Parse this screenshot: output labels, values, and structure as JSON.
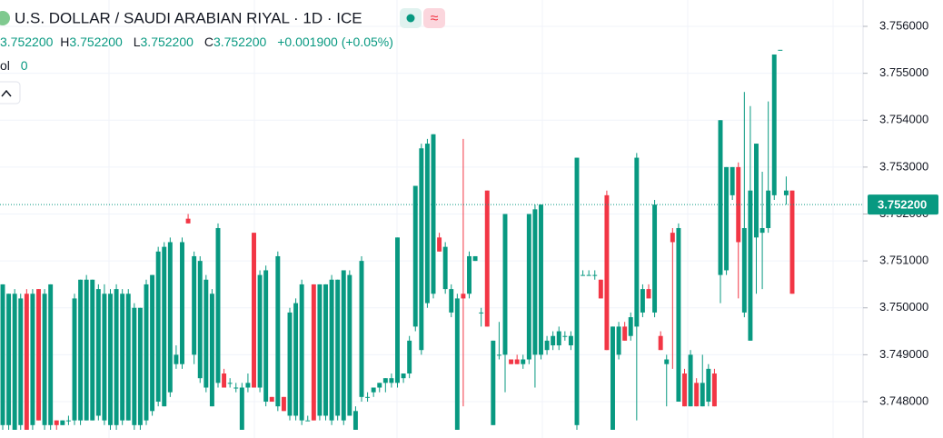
{
  "chart_data": {
    "type": "candlestick",
    "title": "U.S. DOLLAR / SAUDI ARABIAN RIYAL · 1D · ICE",
    "legend": {
      "open": "3.752200",
      "high_label": "H",
      "high": "3.752200",
      "low_label": "L",
      "low": "3.752200",
      "close_label": "C",
      "close": "3.752200",
      "change": "+0.001900 (+0.05%)",
      "volume_label": "ol",
      "volume": "0"
    },
    "up_color": "#089981",
    "down_color": "#f23645",
    "ylim": [
      3.747225,
      3.756562
    ],
    "yticks": [
      {
        "value": 3.756,
        "label": "3.756000"
      },
      {
        "value": 3.755,
        "label": "3.755000"
      },
      {
        "value": 3.754,
        "label": "3.754000"
      },
      {
        "value": 3.753,
        "label": "3.753000"
      },
      {
        "value": 3.752,
        "label": "3.752000"
      },
      {
        "value": 3.751,
        "label": "3.751000"
      },
      {
        "value": 3.75,
        "label": "3.750000"
      },
      {
        "value": 3.749,
        "label": "3.749000"
      },
      {
        "value": 3.748,
        "label": "3.748000"
      }
    ],
    "grid": true,
    "last_price": {
      "value": 3.7522,
      "label": "3.752200"
    },
    "ohlc": [
      [
        3.7475,
        3.7505,
        3.7474,
        3.7505
      ],
      [
        3.7475,
        3.7503,
        3.7474,
        3.7503
      ],
      [
        3.7474,
        3.7504,
        3.7474,
        3.7503
      ],
      [
        3.7475,
        3.7503,
        3.7474,
        3.7502
      ],
      [
        3.7503,
        3.7504,
        3.7474,
        3.7474
      ],
      [
        3.7475,
        3.7504,
        3.7474,
        3.7503
      ],
      [
        3.7504,
        3.7504,
        3.7476,
        3.7476
      ],
      [
        3.7475,
        3.7504,
        3.7474,
        3.7503
      ],
      [
        3.7475,
        3.7505,
        3.7474,
        3.7505
      ],
      [
        3.7476,
        3.7476,
        3.7474,
        3.7475
      ],
      [
        3.7475,
        3.7476,
        3.7475,
        3.7476
      ],
      [
        3.7476,
        3.7477,
        3.7475,
        3.7476
      ],
      [
        3.7476,
        3.7503,
        3.7475,
        3.7502
      ],
      [
        3.7476,
        3.7506,
        3.7475,
        3.7506
      ],
      [
        3.7476,
        3.7507,
        3.7476,
        3.7506
      ],
      [
        3.7476,
        3.7506,
        3.7476,
        3.7506
      ],
      [
        3.7477,
        3.7505,
        3.7476,
        3.7504
      ],
      [
        3.7476,
        3.7505,
        3.7475,
        3.7503
      ],
      [
        3.7475,
        3.7504,
        3.7474,
        3.7503
      ],
      [
        3.7475,
        3.7505,
        3.7474,
        3.7504
      ],
      [
        3.7476,
        3.7504,
        3.7475,
        3.7503
      ],
      [
        3.7476,
        3.7504,
        3.7476,
        3.7503
      ],
      [
        3.7475,
        3.7501,
        3.7474,
        3.75
      ],
      [
        3.7475,
        3.75,
        3.7474,
        3.75
      ],
      [
        3.7476,
        3.7506,
        3.7475,
        3.7505
      ],
      [
        3.7478,
        3.7507,
        3.7477,
        3.7507
      ],
      [
        3.748,
        3.7513,
        3.7479,
        3.7512
      ],
      [
        3.7479,
        3.7514,
        3.7479,
        3.7513
      ],
      [
        3.7482,
        3.7515,
        3.7481,
        3.7514
      ],
      [
        3.7488,
        3.7492,
        3.7487,
        3.749
      ],
      [
        3.7488,
        3.7515,
        3.7487,
        3.7514
      ],
      [
        3.7519,
        3.752,
        3.7518,
        3.7518
      ],
      [
        3.749,
        3.7512,
        3.7488,
        3.7511
      ],
      [
        3.7485,
        3.7511,
        3.7484,
        3.751
      ],
      [
        3.7483,
        3.7507,
        3.7482,
        3.7506
      ],
      [
        3.7479,
        3.7504,
        3.7479,
        3.7503
      ],
      [
        3.7484,
        3.7518,
        3.7483,
        3.7517
      ],
      [
        3.7486,
        3.7487,
        3.7483,
        3.7483
      ],
      [
        3.7484,
        3.7485,
        3.7483,
        3.7484
      ],
      [
        3.7483,
        3.7484,
        3.7482,
        3.7483
      ],
      [
        3.7474,
        3.7484,
        3.7474,
        3.7483
      ],
      [
        3.7483,
        3.7486,
        3.7482,
        3.7484
      ],
      [
        3.7516,
        3.7516,
        3.7483,
        3.7483
      ],
      [
        3.7483,
        3.7508,
        3.7482,
        3.7507
      ],
      [
        3.748,
        3.7509,
        3.7479,
        3.7508
      ],
      [
        3.7481,
        3.7481,
        3.748,
        3.748
      ],
      [
        3.7479,
        3.7512,
        3.7478,
        3.7511
      ],
      [
        3.7481,
        3.7481,
        3.7478,
        3.7478
      ],
      [
        3.7477,
        3.75,
        3.7476,
        3.7499
      ],
      [
        3.7477,
        3.7502,
        3.7476,
        3.7501
      ],
      [
        3.7476,
        3.7506,
        3.7475,
        3.7505
      ],
      [
        3.7476,
        3.7477,
        3.7476,
        3.7476
      ],
      [
        3.7505,
        3.7505,
        3.7476,
        3.7476
      ],
      [
        3.7477,
        3.7505,
        3.7476,
        3.7505
      ],
      [
        3.7477,
        3.7505,
        3.7476,
        3.7505
      ],
      [
        3.7476,
        3.7507,
        3.7475,
        3.7506
      ],
      [
        3.7477,
        3.7506,
        3.7476,
        3.7506
      ],
      [
        3.7476,
        3.7508,
        3.7475,
        3.7508
      ],
      [
        3.7477,
        3.7508,
        3.7477,
        3.7507
      ],
      [
        3.7474,
        3.7479,
        3.7474,
        3.7478
      ],
      [
        3.7481,
        3.7511,
        3.748,
        3.751
      ],
      [
        3.7481,
        3.7482,
        3.748,
        3.7481
      ],
      [
        3.7482,
        3.7483,
        3.7481,
        3.7483
      ],
      [
        3.7483,
        3.7484,
        3.7482,
        3.7484
      ],
      [
        3.7484,
        3.7485,
        3.7482,
        3.7485
      ],
      [
        3.7484,
        3.7486,
        3.7483,
        3.7485
      ],
      [
        3.7484,
        3.7515,
        3.7483,
        3.7515
      ],
      [
        3.7485,
        3.7486,
        3.7484,
        3.7486
      ],
      [
        3.7486,
        3.7494,
        3.7485,
        3.7493
      ],
      [
        3.7496,
        3.7526,
        3.7495,
        3.7526
      ],
      [
        3.7491,
        3.7535,
        3.749,
        3.7534
      ],
      [
        3.7501,
        3.7536,
        3.75,
        3.7535
      ],
      [
        3.7503,
        3.7537,
        3.7502,
        3.7537
      ],
      [
        3.7515,
        3.7516,
        3.7512,
        3.7512
      ],
      [
        3.7504,
        3.7514,
        3.7503,
        3.7513
      ],
      [
        3.7499,
        3.7505,
        3.7498,
        3.7504
      ],
      [
        3.7474,
        3.7503,
        3.7474,
        3.7502
      ],
      [
        3.7503,
        3.7536,
        3.7479,
        3.7502
      ],
      [
        3.7503,
        3.7512,
        3.7502,
        3.7511
      ],
      [
        3.751,
        3.7511,
        3.751,
        3.7511
      ],
      [
        3.7499,
        3.75,
        3.7496,
        3.7499
      ],
      [
        3.7525,
        3.7525,
        3.7496,
        3.7496
      ],
      [
        3.7475,
        3.7493,
        3.7475,
        3.7493
      ],
      [
        3.749,
        3.7497,
        3.7489,
        3.749
      ],
      [
        3.749,
        3.752,
        3.7482,
        3.752
      ],
      [
        3.7489,
        3.7489,
        3.7488,
        3.7488
      ],
      [
        3.7489,
        3.749,
        3.7488,
        3.7488
      ],
      [
        3.7488,
        3.749,
        3.7487,
        3.7489
      ],
      [
        3.7489,
        3.752,
        3.7488,
        3.752
      ],
      [
        3.749,
        3.7522,
        3.7483,
        3.7521
      ],
      [
        3.749,
        3.7522,
        3.7489,
        3.7522
      ],
      [
        3.7491,
        3.7494,
        3.749,
        3.7493
      ],
      [
        3.7492,
        3.7495,
        3.7491,
        3.7494
      ],
      [
        3.7492,
        3.7496,
        3.7491,
        3.7495
      ],
      [
        3.7494,
        3.7495,
        3.7493,
        3.7494
      ],
      [
        3.7492,
        3.7495,
        3.7491,
        3.7494
      ],
      [
        3.7475,
        3.7532,
        3.7474,
        3.7532
      ],
      [
        3.7507,
        3.7508,
        3.7507,
        3.7507
      ],
      [
        3.7507,
        3.7508,
        3.7507,
        3.7507
      ],
      [
        3.7507,
        3.7508,
        3.7506,
        3.7507
      ],
      [
        3.7506,
        3.7506,
        3.7502,
        3.7502
      ],
      [
        3.7524,
        3.7525,
        3.7491,
        3.7491
      ],
      [
        3.7474,
        3.7496,
        3.7474,
        3.7496
      ],
      [
        3.749,
        3.7497,
        3.7489,
        3.7496
      ],
      [
        3.7496,
        3.7497,
        3.7493,
        3.7493
      ],
      [
        3.7494,
        3.7499,
        3.7493,
        3.7498
      ],
      [
        3.7496,
        3.7533,
        3.7476,
        3.7532
      ],
      [
        3.7499,
        3.7505,
        3.7498,
        3.7504
      ],
      [
        3.7504,
        3.7505,
        3.7502,
        3.7502
      ],
      [
        3.7499,
        3.7523,
        3.7498,
        3.7522
      ],
      [
        3.7494,
        3.7495,
        3.7491,
        3.7491
      ],
      [
        3.7488,
        3.749,
        3.7479,
        3.7489
      ],
      [
        3.7516,
        3.7517,
        3.7487,
        3.7514
      ],
      [
        3.748,
        3.7518,
        3.748,
        3.7517
      ],
      [
        3.7486,
        3.7487,
        3.7479,
        3.7479
      ],
      [
        3.7479,
        3.7491,
        3.7479,
        3.749
      ],
      [
        3.7484,
        3.7485,
        3.7479,
        3.7479
      ],
      [
        3.7479,
        3.749,
        3.7479,
        3.7484
      ],
      [
        3.748,
        3.7488,
        3.7479,
        3.7487
      ],
      [
        3.7486,
        3.7487,
        3.7479,
        3.7479
      ],
      [
        3.7507,
        3.754,
        3.7501,
        3.754
      ],
      [
        3.7508,
        3.753,
        3.7507,
        3.753
      ],
      [
        3.7524,
        3.753,
        3.7523,
        3.753
      ],
      [
        3.753,
        3.7531,
        3.7502,
        3.7514
      ],
      [
        3.7499,
        3.7546,
        3.7498,
        3.7517
      ],
      [
        3.7493,
        3.7543,
        3.7493,
        3.7525
      ],
      [
        3.7515,
        3.7535,
        3.7503,
        3.7535
      ],
      [
        3.7516,
        3.7529,
        3.7504,
        3.7517
      ],
      [
        3.7517,
        3.7544,
        3.7516,
        3.7525
      ],
      [
        3.7524,
        3.7554,
        3.7523,
        3.7554
      ],
      [
        3.7555,
        3.7555,
        3.7555,
        3.7555
      ],
      [
        3.7524,
        3.7528,
        3.7522,
        3.7525
      ],
      [
        3.7525,
        3.7525,
        3.7503,
        3.7503
      ]
    ]
  }
}
